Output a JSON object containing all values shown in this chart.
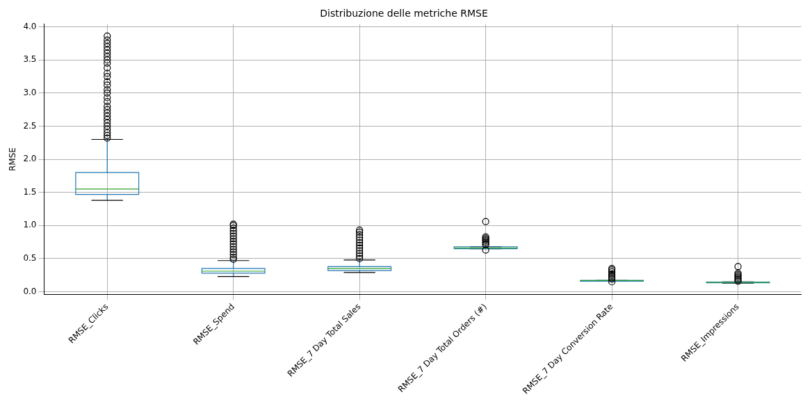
{
  "chart_data": {
    "type": "box",
    "title": "Distribuzione delle metriche RMSE",
    "ylabel": "RMSE",
    "categories": [
      "RMSE_Clicks",
      "RMSE_Spend",
      "RMSE_7 Day Total Sales",
      "RMSE_7 Day Total Orders (#)",
      "RMSE_7 Day Conversion Rate",
      "RMSE_Impressions"
    ],
    "ylim": [
      -0.04,
      4.04
    ],
    "yticks": [
      {
        "value": 0,
        "label": "0.0"
      },
      0.5,
      {
        "value": 1,
        "label": "1.0"
      },
      1.5,
      {
        "value": 2,
        "label": "2.0"
      },
      2.5,
      {
        "value": 3,
        "label": "3.0"
      },
      3.5,
      {
        "value": 4,
        "label": "4.0"
      }
    ],
    "grid": true,
    "color": "#1f77b4",
    "boxes": [
      {
        "low": 1.38,
        "q1": 1.47,
        "median": 1.55,
        "q3": 1.8,
        "high": 2.3,
        "outliers": [
          2.32,
          2.36,
          2.4,
          2.45,
          2.5,
          2.55,
          2.6,
          2.65,
          2.7,
          2.75,
          2.8,
          2.87,
          2.93,
          3.0,
          3.05,
          3.12,
          3.17,
          3.25,
          3.3,
          3.38,
          3.45,
          3.5,
          3.55,
          3.6,
          3.65,
          3.7,
          3.75,
          3.8,
          3.86
        ]
      },
      {
        "low": 0.23,
        "q1": 0.28,
        "median": 0.31,
        "q3": 0.35,
        "high": 0.47,
        "outliers": [
          0.49,
          0.52,
          0.56,
          0.6,
          0.64,
          0.68,
          0.72,
          0.76,
          0.8,
          0.84,
          0.88,
          0.92,
          0.96,
          1.0,
          1.02
        ]
      },
      {
        "low": 0.29,
        "q1": 0.32,
        "median": 0.35,
        "q3": 0.38,
        "high": 0.48,
        "outliers": [
          0.5,
          0.54,
          0.58,
          0.62,
          0.66,
          0.7,
          0.74,
          0.78,
          0.82,
          0.86,
          0.9,
          0.93
        ]
      },
      {
        "low": 0.65,
        "q1": 0.65,
        "median": 0.66,
        "q3": 0.68,
        "high": 0.68,
        "outliers": [
          0.63,
          0.71,
          0.73,
          0.75,
          0.77,
          0.79,
          0.81,
          0.83,
          1.06
        ]
      },
      {
        "low": 0.16,
        "q1": 0.16,
        "median": 0.17,
        "q3": 0.17,
        "high": 0.17,
        "outliers": [
          0.15,
          0.19,
          0.21,
          0.23,
          0.25,
          0.27,
          0.3,
          0.33,
          0.35
        ]
      },
      {
        "low": 0.13,
        "q1": 0.135,
        "median": 0.14,
        "q3": 0.145,
        "high": 0.15,
        "outliers": [
          0.16,
          0.18,
          0.2,
          0.22,
          0.24,
          0.26,
          0.28,
          0.38
        ]
      }
    ]
  }
}
